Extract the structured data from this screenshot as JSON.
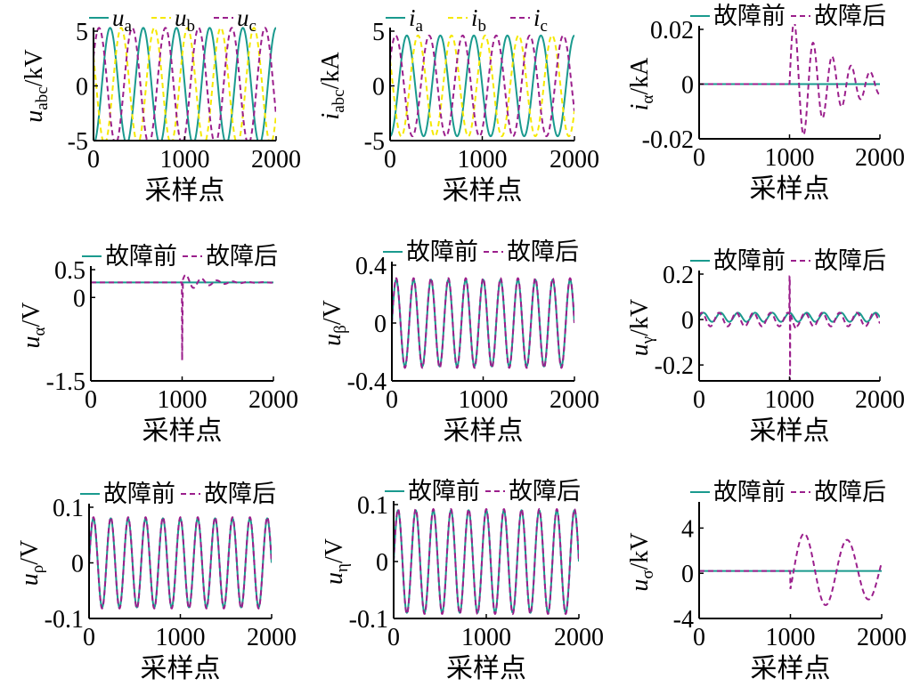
{
  "colors": {
    "teal": "#1a9a8e",
    "magenta": "#9b1f8c",
    "yellow": "#f5e800",
    "axis": "#000000"
  },
  "chart_data": [
    {
      "type": "line",
      "ylabel": "u_abc/kV",
      "xlabel": "采样点",
      "xlim": [
        0,
        2000
      ],
      "ylim": [
        -5,
        5
      ],
      "xticks": [
        "0",
        "1000",
        "2000"
      ],
      "yticks": [
        "-5",
        "0",
        "5"
      ],
      "legend": "top",
      "series": [
        {
          "name": "u_a",
          "color": "#1a9a8e",
          "dash": "solid",
          "kind": "sine",
          "amplitude": 5.3,
          "cycles": 5.5,
          "phase_deg": -90,
          "offset": 0
        },
        {
          "name": "u_b",
          "color": "#f5e800",
          "dash": "dashed",
          "kind": "sine",
          "amplitude": 5.3,
          "cycles": 5.5,
          "phase_deg": 150,
          "offset": 0
        },
        {
          "name": "u_c",
          "color": "#9b1f8c",
          "dash": "dashed",
          "kind": "sine",
          "amplitude": 5.3,
          "cycles": 5.5,
          "phase_deg": 30,
          "offset": 0
        }
      ]
    },
    {
      "type": "line",
      "ylabel": "i_abc/kA",
      "xlabel": "采样点",
      "xlim": [
        0,
        2000
      ],
      "ylim": [
        -5,
        5
      ],
      "xticks": [
        "0",
        "1000",
        "2000"
      ],
      "yticks": [
        "-5",
        "0",
        "5"
      ],
      "legend": "top",
      "series": [
        {
          "name": "i_a",
          "color": "#1a9a8e",
          "dash": "solid",
          "kind": "sine",
          "amplitude": 4.6,
          "cycles": 5.5,
          "phase_deg": -90,
          "offset": 0
        },
        {
          "name": "i_b",
          "color": "#f5e800",
          "dash": "dashed",
          "kind": "sine",
          "amplitude": 4.6,
          "cycles": 5.5,
          "phase_deg": 150,
          "offset": 0
        },
        {
          "name": "i_c",
          "color": "#9b1f8c",
          "dash": "dashed",
          "kind": "sine",
          "amplitude": 4.6,
          "cycles": 5.5,
          "phase_deg": 30,
          "offset": 0
        }
      ]
    },
    {
      "type": "line",
      "ylabel": "i_α/kA",
      "xlabel": "采样点",
      "xlim": [
        0,
        2000
      ],
      "ylim": [
        -0.02,
        0.02
      ],
      "xticks": [
        "0",
        "1000",
        "2000"
      ],
      "yticks": [
        "-0.02",
        "0",
        "0.02"
      ],
      "legend": "top",
      "series": [
        {
          "name": "故障前",
          "color": "#1a9a8e",
          "dash": "solid",
          "kind": "const",
          "offset": 0
        },
        {
          "name": "故障后",
          "color": "#9b1f8c",
          "dash": "dashed",
          "kind": "transient",
          "offset": 0,
          "start": 1000,
          "amp": 0.025,
          "decay": 520,
          "period": 210
        }
      ]
    },
    {
      "type": "line",
      "ylabel": "u_α/V",
      "xlabel": "采样点",
      "xlim": [
        0,
        2000
      ],
      "ylim": [
        -1.5,
        0.5
      ],
      "xticks": [
        "0",
        "1000",
        "2000"
      ],
      "yticks": [
        "-1.5",
        "0",
        "0.5"
      ],
      "legend": "top",
      "series": [
        {
          "name": "故障前",
          "color": "#1a9a8e",
          "dash": "solid",
          "kind": "const",
          "offset": 0.27
        },
        {
          "name": "故障后",
          "color": "#9b1f8c",
          "dash": "dashed",
          "kind": "spike",
          "offset": 0.27,
          "start": 1000,
          "spike": -1.4,
          "amp": 0.16,
          "decay": 260,
          "period": 170
        }
      ]
    },
    {
      "type": "line",
      "ylabel": "u_β/V",
      "xlabel": "采样点",
      "xlim": [
        0,
        2000
      ],
      "ylim": [
        -0.4,
        0.4
      ],
      "xticks": [
        "0",
        "1000",
        "2000"
      ],
      "yticks": [
        "-0.4",
        "0",
        "0.4"
      ],
      "legend": "top",
      "series": [
        {
          "name": "故障前",
          "color": "#1a9a8e",
          "dash": "solid",
          "kind": "sine",
          "amplitude": 0.3,
          "cycles": 10.5,
          "phase_deg": 0,
          "offset": 0
        },
        {
          "name": "故障后",
          "color": "#9b1f8c",
          "dash": "dashed",
          "kind": "sine",
          "amplitude": 0.31,
          "cycles": 10.5,
          "phase_deg": 0,
          "offset": 0
        }
      ]
    },
    {
      "type": "line",
      "ylabel": "u_γ/kV",
      "xlabel": "采样点",
      "xlim": [
        0,
        2000
      ],
      "ylim": [
        -0.27,
        0.2
      ],
      "xticks": [
        "0",
        "1000",
        "2000"
      ],
      "yticks": [
        "-0.2",
        "0",
        "0.2"
      ],
      "legend": "top",
      "series": [
        {
          "name": "故障前",
          "color": "#1a9a8e",
          "dash": "solid",
          "kind": "sine",
          "amplitude": 0.02,
          "cycles": 10.5,
          "phase_deg": 0,
          "offset": 0.01
        },
        {
          "name": "故障后",
          "color": "#9b1f8c",
          "dash": "dashed",
          "kind": "spike2",
          "amplitude": 0.025,
          "cycles": 10.5,
          "offset": 0.0,
          "start": 1000,
          "spike_up": 0.19,
          "spike_dn": -0.27
        }
      ]
    },
    {
      "type": "line",
      "ylabel": "u_ρ/V",
      "xlabel": "采样点",
      "xlim": [
        0,
        2000
      ],
      "ylim": [
        -0.1,
        0.1
      ],
      "xticks": [
        "0",
        "1000",
        "2000"
      ],
      "yticks": [
        "-0.1",
        "0",
        "0.1"
      ],
      "legend": "top",
      "series": [
        {
          "name": "故障前",
          "color": "#1a9a8e",
          "dash": "solid",
          "kind": "sine",
          "amplitude": 0.08,
          "cycles": 10.5,
          "phase_deg": 0,
          "offset": 0
        },
        {
          "name": "故障后",
          "color": "#9b1f8c",
          "dash": "dashed",
          "kind": "sine",
          "amplitude": 0.082,
          "cycles": 10.5,
          "phase_deg": 0,
          "offset": 0
        }
      ]
    },
    {
      "type": "line",
      "ylabel": "u_η/V",
      "xlabel": "采样点",
      "xlim": [
        0,
        2000
      ],
      "ylim": [
        -0.1,
        0.1
      ],
      "xticks": [
        "0",
        "1000",
        "2000"
      ],
      "yticks": [
        "-0.1",
        "0",
        "0.1"
      ],
      "legend": "top",
      "series": [
        {
          "name": "故障前",
          "color": "#1a9a8e",
          "dash": "solid",
          "kind": "sine",
          "amplitude": 0.09,
          "cycles": 10.5,
          "phase_deg": 0,
          "offset": 0
        },
        {
          "name": "故障后",
          "color": "#9b1f8c",
          "dash": "dashed",
          "kind": "sine",
          "amplitude": 0.092,
          "cycles": 10.5,
          "phase_deg": 0,
          "offset": 0
        }
      ]
    },
    {
      "type": "line",
      "ylabel": "u_σ/kV",
      "xlabel": "采样点",
      "xlim": [
        0,
        2000
      ],
      "ylim": [
        -4,
        6
      ],
      "xticks": [
        "0",
        "1000",
        "2000"
      ],
      "yticks": [
        "-4",
        "0",
        "4"
      ],
      "legend": "top",
      "series": [
        {
          "name": "故障前",
          "color": "#1a9a8e",
          "dash": "solid",
          "kind": "const",
          "offset": 0.2
        },
        {
          "name": "故障后",
          "color": "#9b1f8c",
          "dash": "dashed",
          "kind": "osc",
          "offset": 0.2,
          "start": 1000,
          "amp": 3.5,
          "period": 470,
          "decay": 2600
        }
      ]
    }
  ]
}
